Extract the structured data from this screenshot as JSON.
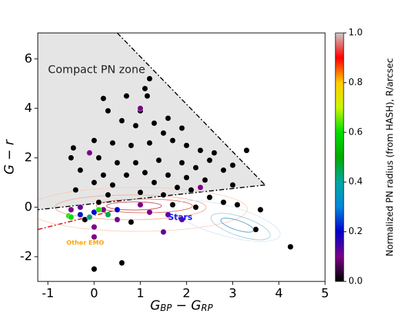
{
  "chart_data": {
    "type": "scatter",
    "xlabel": [
      "G",
      "BP",
      " − G",
      "RP"
    ],
    "ylabel": "G − r",
    "xlim": [
      -1.22,
      5
    ],
    "ylim": [
      -3,
      7.05
    ],
    "xticks": [
      -1,
      0,
      1,
      2,
      3,
      4,
      5
    ],
    "yticks": [
      -2,
      0,
      2,
      4,
      6
    ],
    "zone": [
      [
        -1.22,
        7.05
      ],
      [
        0.5,
        7.05
      ],
      [
        3.7,
        0.9
      ],
      [
        -1.22,
        -0.1
      ]
    ],
    "zone_color": "#e5e5e5",
    "red_line": [
      [
        -1.22,
        -0.9
      ],
      [
        0.4,
        -0.15
      ]
    ],
    "annotations": [
      {
        "text": "Compact PN zone",
        "x": -1.0,
        "y": 5.55,
        "color": "#222222"
      },
      {
        "text": "Stars",
        "x": 1.6,
        "y": -0.42,
        "color": "#1a1aff"
      },
      {
        "text": "Other EMO",
        "x": -0.6,
        "y": -1.45,
        "color": "#ffa500"
      }
    ],
    "series": [
      {
        "x": [
          1.1,
          1.15,
          0.2,
          0.7,
          1.2,
          0.3,
          1.0,
          0.6,
          0.9,
          1.3,
          1.6,
          1.9,
          1.5,
          0.0,
          -0.45,
          0.4,
          0.8,
          1.2,
          1.7,
          2.0,
          2.3,
          2.6,
          3.0,
          3.3,
          2.5,
          0.1,
          -0.5,
          0.5,
          0.9,
          1.4,
          1.9,
          2.2,
          2.8,
          -0.3,
          0.2,
          0.7,
          1.1,
          1.6,
          2.0,
          2.4,
          0.0,
          0.4,
          1.3,
          1.8,
          2.1,
          3.0,
          -0.4,
          0.3,
          1.0,
          1.5,
          2.5,
          2.8,
          3.1,
          0.1,
          1.7,
          2.2,
          3.6,
          4.25,
          3.5,
          0.0,
          0.6,
          -0.2,
          0.8,
          1.0,
          -0.1,
          1.9,
          1.0,
          0.2,
          1.6,
          0.0,
          0.0,
          1.5,
          0.5,
          1.2,
          -0.5,
          -0.3,
          2.3,
          0.0,
          0.5,
          -0.3,
          0.3,
          -0.1,
          -0.55,
          -0.5,
          0.1
        ],
        "y": [
          4.8,
          4.5,
          4.4,
          4.5,
          5.2,
          3.9,
          3.9,
          3.5,
          3.3,
          3.4,
          3.6,
          3.2,
          3.0,
          2.7,
          2.4,
          2.6,
          2.5,
          2.6,
          2.7,
          2.5,
          2.3,
          2.2,
          1.7,
          2.3,
          1.9,
          2.0,
          2.0,
          1.8,
          1.8,
          1.9,
          1.8,
          1.6,
          1.5,
          1.5,
          1.3,
          1.3,
          1.4,
          1.3,
          1.2,
          1.1,
          1.0,
          0.9,
          1.0,
          0.8,
          0.7,
          0.9,
          0.7,
          0.5,
          0.6,
          0.5,
          0.4,
          0.2,
          0.1,
          0.2,
          0.1,
          0.0,
          -0.1,
          -1.6,
          -0.9,
          -2.5,
          -2.25,
          -0.5,
          -0.6,
          4.0,
          2.2,
          -0.5,
          0.1,
          -0.1,
          -0.3,
          -0.8,
          -1.2,
          -1.0,
          -0.5,
          -0.2,
          -0.1,
          0.0,
          0.8,
          -0.2,
          -0.1,
          -0.3,
          -0.3,
          -0.4,
          -0.35,
          -0.4,
          -0.1
        ],
        "c": [
          0,
          0,
          0,
          0,
          0,
          0,
          0,
          0,
          0,
          0,
          0,
          0,
          0,
          0,
          0,
          0,
          0,
          0,
          0,
          0,
          0,
          0,
          0,
          0,
          0,
          0,
          0,
          0,
          0,
          0,
          0,
          0,
          0,
          0,
          0,
          0,
          0,
          0,
          0,
          0,
          0,
          0,
          0,
          0,
          0,
          0,
          0,
          0,
          0,
          0,
          0,
          0,
          0,
          0,
          0,
          0,
          0,
          0,
          0,
          0,
          0,
          0,
          0,
          0.1,
          0.1,
          0.12,
          0.1,
          0.1,
          0.12,
          0.1,
          0.1,
          0.12,
          0.1,
          0.1,
          0.1,
          0.12,
          0.1,
          0.2,
          0.2,
          0.22,
          0.45,
          0.42,
          0.62,
          0.6,
          0.62
        ]
      }
    ],
    "colorbar": {
      "label": "Normalized PN radius (from HASH), R/arcsec",
      "lim": [
        0,
        1
      ],
      "ticks": [
        {
          "value": 0,
          "label": "0.0"
        },
        {
          "value": 0.2,
          "label": "0.2"
        },
        {
          "value": 0.4,
          "label": "0.4"
        },
        {
          "value": 0.6,
          "label": "0.6"
        },
        {
          "value": 0.8,
          "label": "0.8"
        },
        {
          "value": 1,
          "label": "1.0"
        }
      ],
      "colormap": [
        [
          0,
          "#000000"
        ],
        [
          0.1,
          "#7e0089"
        ],
        [
          0.2,
          "#0000cc"
        ],
        [
          0.3,
          "#0088dd"
        ],
        [
          0.4,
          "#00a8a0"
        ],
        [
          0.5,
          "#00aa00"
        ],
        [
          0.6,
          "#00dd00"
        ],
        [
          0.7,
          "#ccf500"
        ],
        [
          0.8,
          "#ffcc00"
        ],
        [
          0.9,
          "#ff0000"
        ],
        [
          1,
          "#cccccc"
        ]
      ]
    }
  }
}
